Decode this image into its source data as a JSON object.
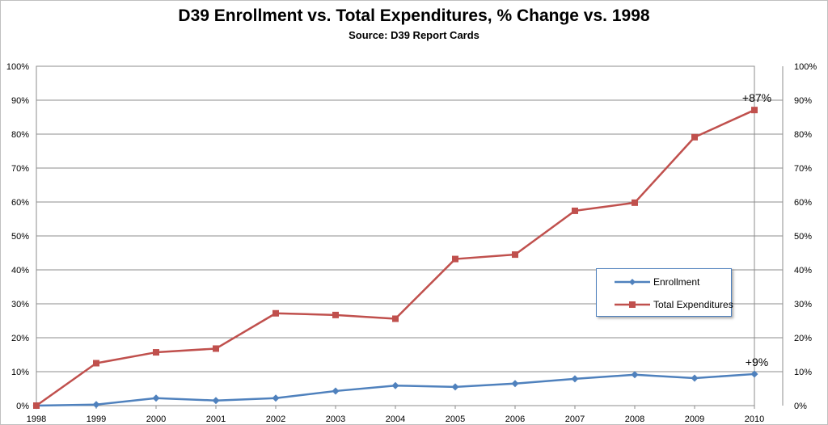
{
  "chart_data": {
    "type": "line",
    "title": "D39 Enrollment vs. Total Expenditures, % Change vs. 1998",
    "subtitle": "Source: D39 Report Cards",
    "x": [
      "1998",
      "1999",
      "2000",
      "2001",
      "2002",
      "2003",
      "2004",
      "2005",
      "2006",
      "2007",
      "2008",
      "2009",
      "2010"
    ],
    "ylim": [
      0,
      100
    ],
    "yticks": [
      "0%",
      "10%",
      "20%",
      "30%",
      "40%",
      "50%",
      "60%",
      "70%",
      "80%",
      "90%",
      "100%"
    ],
    "secondary_yticks": [
      "0%",
      "10%",
      "20%",
      "30%",
      "40%",
      "50%",
      "60%",
      "70%",
      "80%",
      "90%",
      "100%"
    ],
    "grid": true,
    "legend_position": "right",
    "series": [
      {
        "name": "Enrollment",
        "color": "#4f81bd",
        "marker": "diamond",
        "values": [
          0,
          0.3,
          2.2,
          1.5,
          2.2,
          4.3,
          5.9,
          5.5,
          6.5,
          7.9,
          9.1,
          8.1,
          9.3
        ]
      },
      {
        "name": "Total Expenditures",
        "color": "#c0504d",
        "marker": "square",
        "values": [
          0,
          12.5,
          15.7,
          16.8,
          27.2,
          26.7,
          25.6,
          43.2,
          44.5,
          57.4,
          59.8,
          79.1,
          87.1
        ]
      }
    ],
    "annotations": [
      {
        "text": "+87%",
        "series": 1,
        "index": 12
      },
      {
        "text": "+9%",
        "series": 0,
        "index": 12
      }
    ]
  }
}
